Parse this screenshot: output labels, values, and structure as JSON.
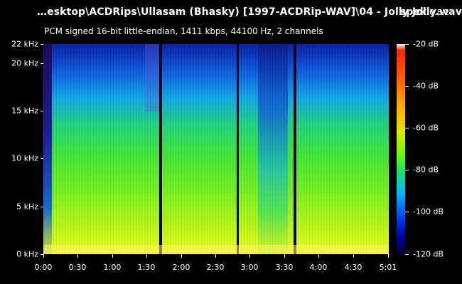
{
  "header": {
    "filepath": "…esktop\\ACDRips\\Ullasam (Bhasky) [1997-ACDRip-WAV]\\04 - Jolly Jolly.wav",
    "app_name": "spek",
    "version": "0.8.2",
    "subtitle": "PCM signed 16-bit little-endian, 1411 kbps, 44100 Hz, 2 channels"
  },
  "axes": {
    "y_labels": [
      "22 kHz",
      "20 kHz",
      "15 kHz",
      "10 kHz",
      "5 kHz",
      "0 kHz"
    ],
    "x_labels": [
      "0:00",
      "0:30",
      "1:00",
      "1:30",
      "2:00",
      "2:30",
      "3:00",
      "3:30",
      "4:00",
      "4:30",
      "5:01"
    ],
    "db_labels": [
      "-20 dB",
      "-40 dB",
      "-60 dB",
      "-80 dB",
      "-100 dB",
      "-120 dB"
    ]
  },
  "colors": {
    "background": "#000000",
    "text": "#ffffff",
    "spectrogram_high_freq": "#071e88",
    "spectrogram_mid": "#1ddf44",
    "spectrogram_low": "#d8f018",
    "silence_gap": "#000018"
  }
}
